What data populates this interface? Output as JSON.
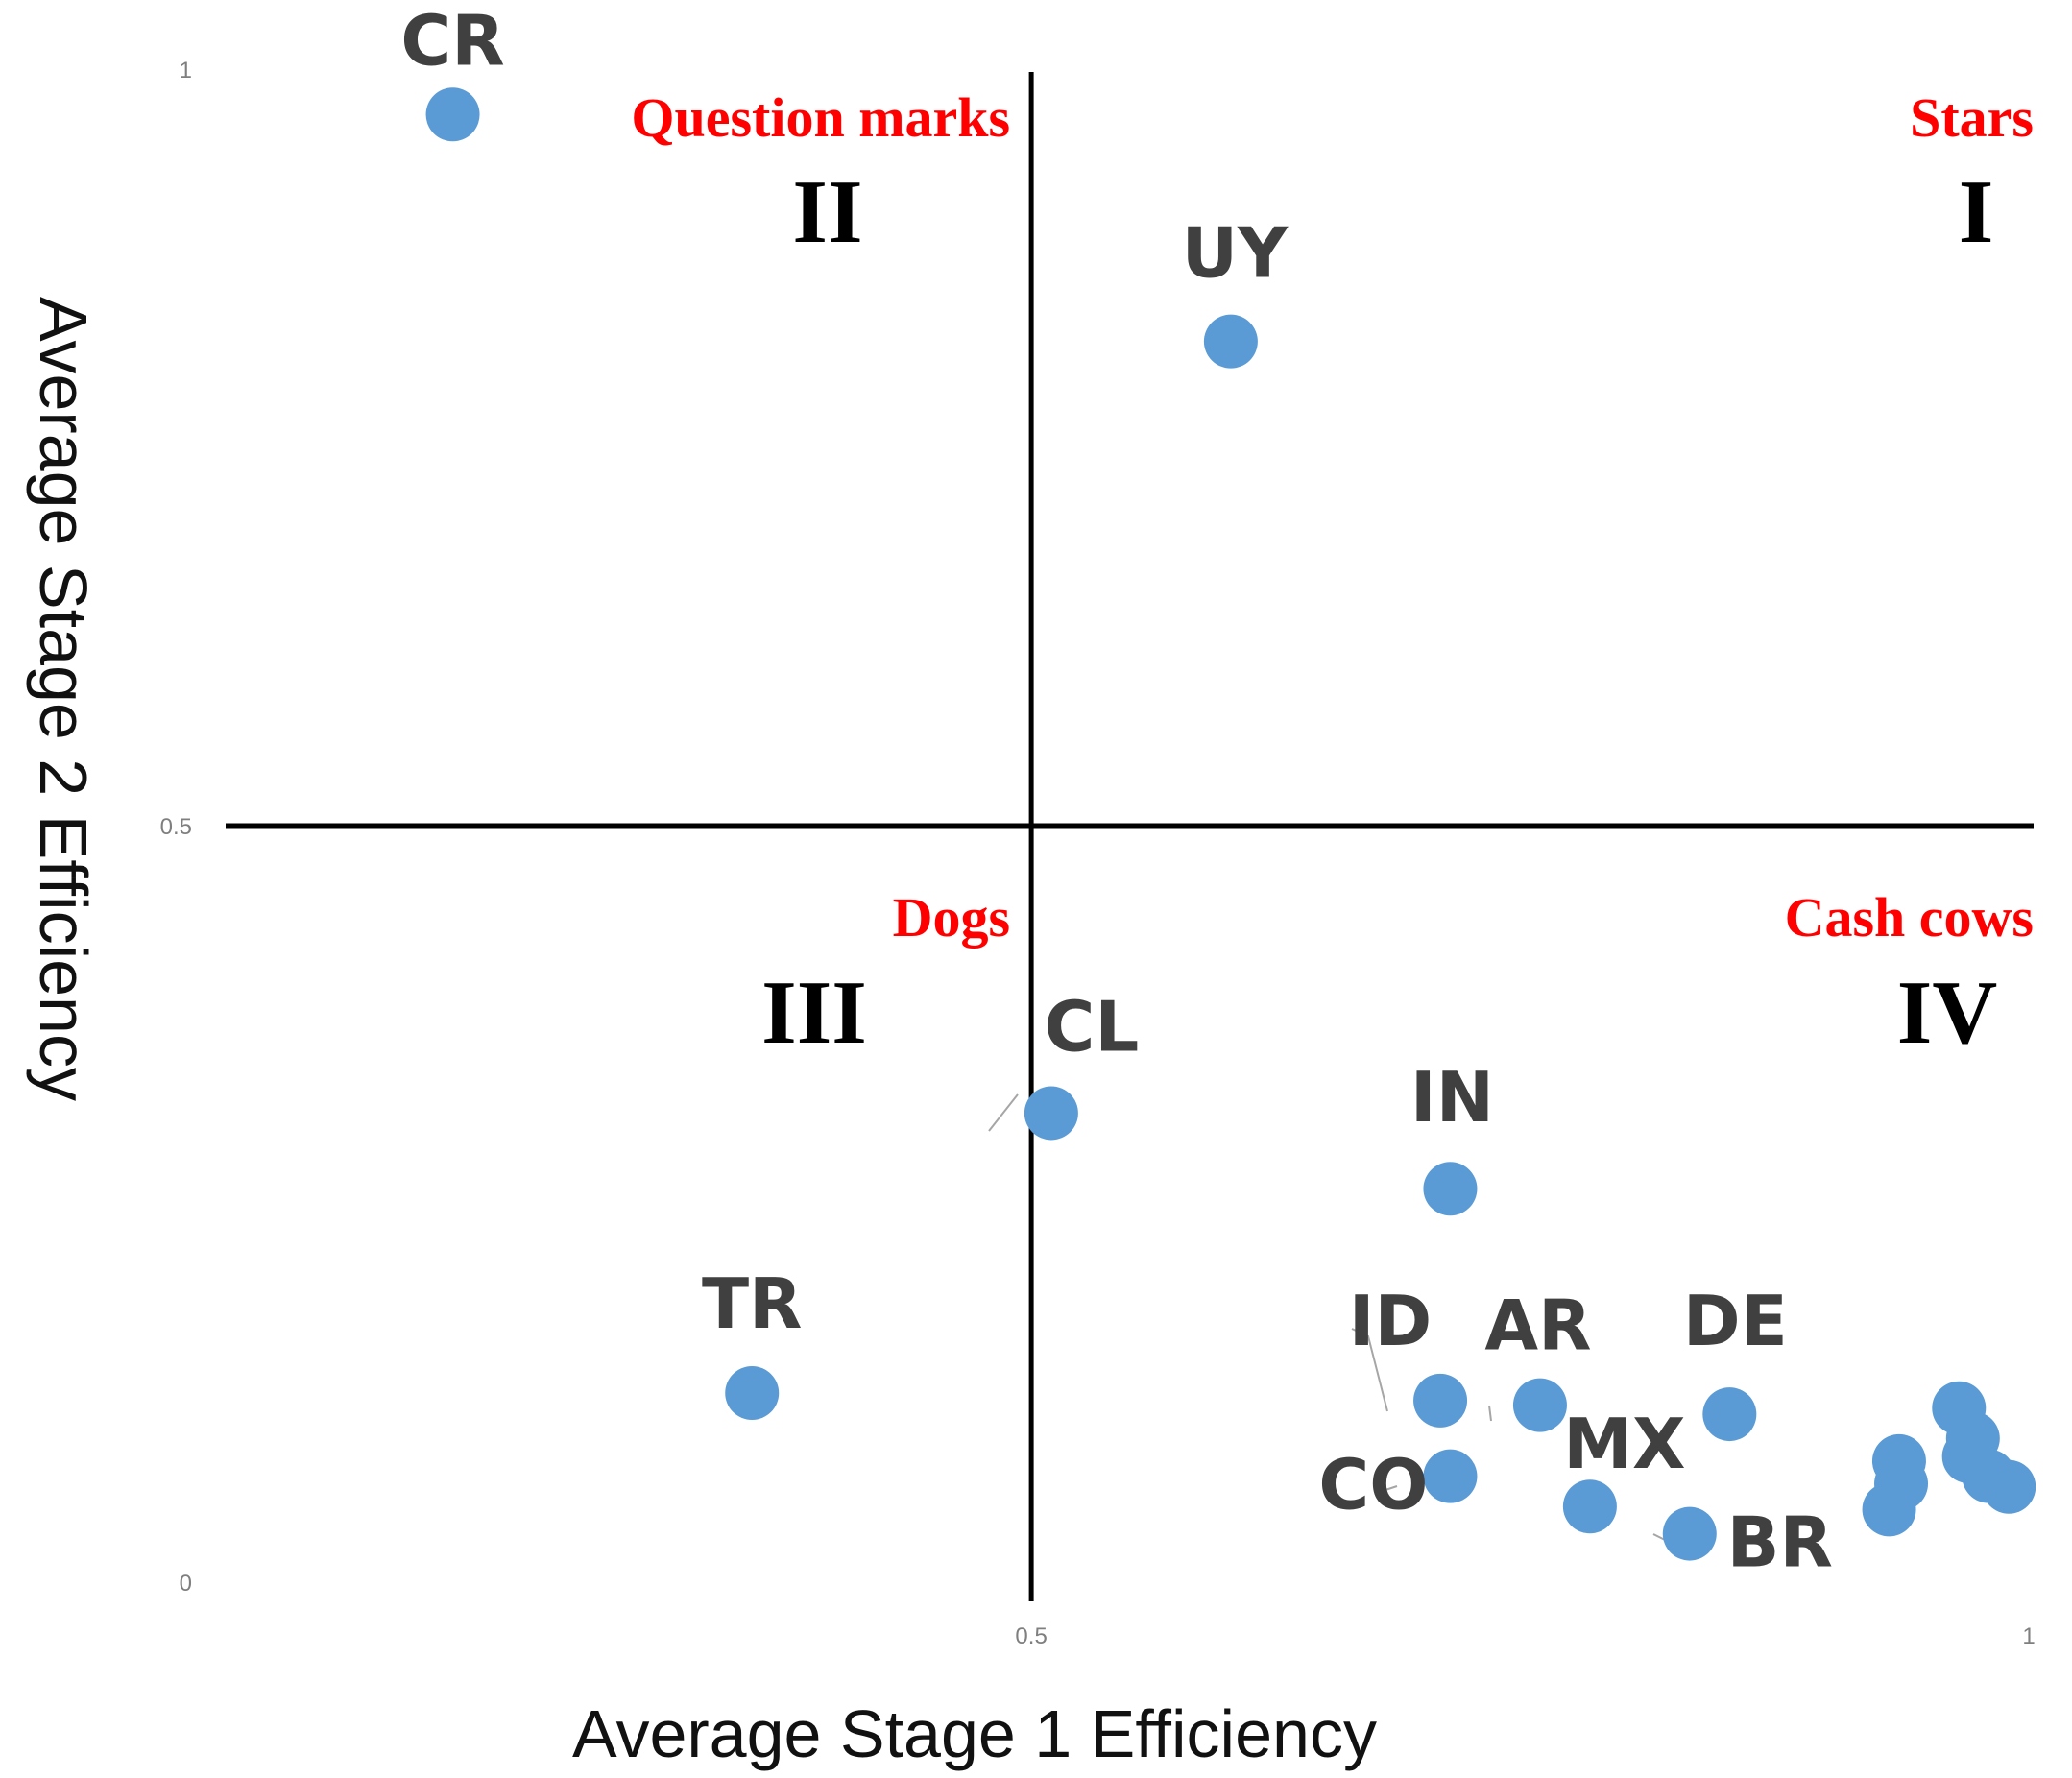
{
  "chart_data": {
    "type": "scatter",
    "title": "",
    "xlabel": "Average Stage 1 Efficiency",
    "ylabel": "Average Stage 2 Efficiency",
    "xlim": [
      0.1,
      1.0
    ],
    "ylim": [
      0.0,
      1.0
    ],
    "x_ticks": [
      {
        "value": 0.5,
        "label": "0.5"
      },
      {
        "value": 1.0,
        "label": "1"
      }
    ],
    "y_ticks": [
      {
        "value": 0.0,
        "label": "0"
      },
      {
        "value": 0.5,
        "label": "0.5"
      },
      {
        "value": 1.0,
        "label": "1"
      }
    ],
    "grid": false,
    "marker_color": "#5b9bd5",
    "quadrant_dividers": {
      "x": 0.5,
      "y": 0.5
    },
    "quadrants": [
      {
        "numeral": "I",
        "name": "Stars",
        "position": "top-right"
      },
      {
        "numeral": "II",
        "name": "Question marks",
        "position": "top-left"
      },
      {
        "numeral": "III",
        "name": "Dogs",
        "position": "bottom-left"
      },
      {
        "numeral": "IV",
        "name": "Cash cows",
        "position": "bottom-right"
      }
    ],
    "quadrant_name_color": "#ff0000",
    "points": [
      {
        "label": "CR",
        "x": 0.21,
        "y": 0.97
      },
      {
        "label": "UY",
        "x": 0.6,
        "y": 0.82
      },
      {
        "label": "CL",
        "x": 0.51,
        "y": 0.31
      },
      {
        "label": "IN",
        "x": 0.71,
        "y": 0.26
      },
      {
        "label": "TR",
        "x": 0.36,
        "y": 0.125
      },
      {
        "label": "ID",
        "x": 0.705,
        "y": 0.12
      },
      {
        "label": "AR",
        "x": 0.755,
        "y": 0.117
      },
      {
        "label": "DE",
        "x": 0.85,
        "y": 0.111
      },
      {
        "label": "MX",
        "x": 0.78,
        "y": 0.05
      },
      {
        "label": "CO",
        "x": 0.71,
        "y": 0.07
      },
      {
        "label": "BR",
        "x": 0.83,
        "y": 0.032
      },
      {
        "label": "",
        "x": 0.935,
        "y": 0.08
      },
      {
        "label": "",
        "x": 0.936,
        "y": 0.065
      },
      {
        "label": "",
        "x": 0.93,
        "y": 0.048
      },
      {
        "label": "",
        "x": 0.965,
        "y": 0.115
      },
      {
        "label": "",
        "x": 0.972,
        "y": 0.095
      },
      {
        "label": "",
        "x": 0.97,
        "y": 0.083
      },
      {
        "label": "",
        "x": 0.98,
        "y": 0.07
      },
      {
        "label": "",
        "x": 0.99,
        "y": 0.063
      }
    ]
  }
}
